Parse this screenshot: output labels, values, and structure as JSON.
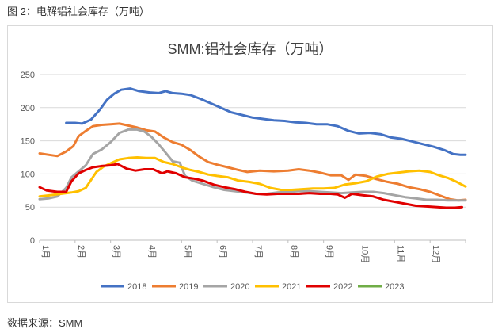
{
  "figure": {
    "caption": "图 2：电解铝社会库存（万吨）",
    "source": "数据来源：SMM"
  },
  "chart_data": {
    "type": "line",
    "title": "SMM:铝社会库存（万吨）",
    "xlabel": "",
    "ylabel": "",
    "ylim": [
      0,
      250
    ],
    "yticks": [
      0,
      50,
      100,
      150,
      200,
      250
    ],
    "x_domain": [
      1,
      13
    ],
    "xtick_labels": [
      "1月",
      "2月",
      "3月",
      "4月",
      "5月",
      "6月",
      "7月",
      "8月",
      "9月",
      "10月",
      "11月",
      "12月"
    ],
    "grid": "horizontal",
    "legend_position": "bottom",
    "series": [
      {
        "name": "2018",
        "color": "#4472c4",
        "points": [
          [
            1.75,
            177
          ],
          [
            2.0,
            177
          ],
          [
            2.2,
            176
          ],
          [
            2.45,
            182
          ],
          [
            2.7,
            197
          ],
          [
            2.9,
            212
          ],
          [
            3.1,
            221
          ],
          [
            3.3,
            227
          ],
          [
            3.55,
            229
          ],
          [
            3.8,
            225
          ],
          [
            4.1,
            223
          ],
          [
            4.35,
            222
          ],
          [
            4.55,
            225
          ],
          [
            4.75,
            222
          ],
          [
            5.0,
            221
          ],
          [
            5.25,
            219
          ],
          [
            5.5,
            214
          ],
          [
            5.8,
            207
          ],
          [
            6.1,
            200
          ],
          [
            6.4,
            193
          ],
          [
            6.7,
            189
          ],
          [
            7.0,
            185
          ],
          [
            7.3,
            183
          ],
          [
            7.6,
            181
          ],
          [
            7.9,
            180
          ],
          [
            8.2,
            178
          ],
          [
            8.5,
            177
          ],
          [
            8.8,
            175
          ],
          [
            9.1,
            175
          ],
          [
            9.4,
            172
          ],
          [
            9.7,
            165
          ],
          [
            10.0,
            161
          ],
          [
            10.3,
            162
          ],
          [
            10.6,
            160
          ],
          [
            10.9,
            155
          ],
          [
            11.2,
            153
          ],
          [
            11.5,
            149
          ],
          [
            11.8,
            145
          ],
          [
            12.1,
            141
          ],
          [
            12.4,
            136
          ],
          [
            12.65,
            130
          ],
          [
            12.85,
            129
          ],
          [
            13.0,
            129
          ]
        ]
      },
      {
        "name": "2019",
        "color": "#ed7d31",
        "points": [
          [
            1.0,
            131
          ],
          [
            1.25,
            129
          ],
          [
            1.5,
            127
          ],
          [
            1.75,
            134
          ],
          [
            1.95,
            142
          ],
          [
            2.1,
            157
          ],
          [
            2.3,
            165
          ],
          [
            2.5,
            172
          ],
          [
            2.75,
            174
          ],
          [
            3.0,
            175
          ],
          [
            3.25,
            176
          ],
          [
            3.5,
            173
          ],
          [
            3.75,
            170
          ],
          [
            4.0,
            166
          ],
          [
            4.25,
            164
          ],
          [
            4.5,
            155
          ],
          [
            4.75,
            148
          ],
          [
            5.0,
            144
          ],
          [
            5.25,
            136
          ],
          [
            5.5,
            126
          ],
          [
            5.75,
            118
          ],
          [
            6.0,
            114
          ],
          [
            6.3,
            110
          ],
          [
            6.6,
            106
          ],
          [
            6.85,
            103
          ],
          [
            7.2,
            105
          ],
          [
            7.6,
            104
          ],
          [
            8.0,
            105
          ],
          [
            8.3,
            107
          ],
          [
            8.6,
            105
          ],
          [
            8.9,
            102
          ],
          [
            9.2,
            98
          ],
          [
            9.5,
            98
          ],
          [
            9.7,
            91
          ],
          [
            9.9,
            99
          ],
          [
            10.2,
            97
          ],
          [
            10.5,
            92
          ],
          [
            10.8,
            88
          ],
          [
            11.1,
            85
          ],
          [
            11.4,
            80
          ],
          [
            11.7,
            77
          ],
          [
            12.0,
            73
          ],
          [
            12.3,
            67
          ],
          [
            12.55,
            62
          ],
          [
            12.8,
            60
          ],
          [
            13.0,
            61
          ]
        ]
      },
      {
        "name": "2020",
        "color": "#a5a5a5",
        "points": [
          [
            1.0,
            62
          ],
          [
            1.25,
            63
          ],
          [
            1.5,
            66
          ],
          [
            1.75,
            79
          ],
          [
            1.9,
            95
          ],
          [
            2.1,
            104
          ],
          [
            2.3,
            113
          ],
          [
            2.5,
            130
          ],
          [
            2.75,
            137
          ],
          [
            3.0,
            148
          ],
          [
            3.25,
            162
          ],
          [
            3.5,
            167
          ],
          [
            3.75,
            167
          ],
          [
            3.95,
            164
          ],
          [
            4.15,
            156
          ],
          [
            4.35,
            145
          ],
          [
            4.55,
            132
          ],
          [
            4.75,
            119
          ],
          [
            4.95,
            117
          ],
          [
            5.1,
            97
          ],
          [
            5.3,
            90
          ],
          [
            5.6,
            85
          ],
          [
            5.9,
            80
          ],
          [
            6.2,
            76
          ],
          [
            6.5,
            74
          ],
          [
            6.8,
            72
          ],
          [
            7.1,
            70
          ],
          [
            7.4,
            70
          ],
          [
            7.7,
            72
          ],
          [
            8.0,
            73
          ],
          [
            8.3,
            74
          ],
          [
            8.6,
            74
          ],
          [
            8.9,
            73
          ],
          [
            9.2,
            72
          ],
          [
            9.5,
            71
          ],
          [
            9.8,
            72
          ],
          [
            10.1,
            73
          ],
          [
            10.4,
            73
          ],
          [
            10.7,
            71
          ],
          [
            11.0,
            68
          ],
          [
            11.3,
            65
          ],
          [
            11.6,
            63
          ],
          [
            11.9,
            61
          ],
          [
            12.2,
            61
          ],
          [
            12.5,
            60
          ],
          [
            12.8,
            60
          ],
          [
            13.0,
            60
          ]
        ]
      },
      {
        "name": "2021",
        "color": "#ffc000",
        "points": [
          [
            1.0,
            66
          ],
          [
            1.3,
            68
          ],
          [
            1.6,
            70
          ],
          [
            1.9,
            72
          ],
          [
            2.1,
            74
          ],
          [
            2.3,
            79
          ],
          [
            2.45,
            91
          ],
          [
            2.6,
            103
          ],
          [
            2.8,
            111
          ],
          [
            3.0,
            116
          ],
          [
            3.25,
            122
          ],
          [
            3.5,
            124
          ],
          [
            3.75,
            125
          ],
          [
            4.0,
            124
          ],
          [
            4.25,
            124
          ],
          [
            4.5,
            118
          ],
          [
            4.75,
            115
          ],
          [
            5.0,
            110
          ],
          [
            5.25,
            106
          ],
          [
            5.5,
            103
          ],
          [
            5.75,
            99
          ],
          [
            6.0,
            97
          ],
          [
            6.3,
            95
          ],
          [
            6.6,
            90
          ],
          [
            6.9,
            88
          ],
          [
            7.2,
            85
          ],
          [
            7.5,
            79
          ],
          [
            7.8,
            76
          ],
          [
            8.1,
            76
          ],
          [
            8.4,
            77
          ],
          [
            8.7,
            78
          ],
          [
            9.0,
            78
          ],
          [
            9.3,
            79
          ],
          [
            9.6,
            84
          ],
          [
            9.9,
            86
          ],
          [
            10.2,
            89
          ],
          [
            10.5,
            96
          ],
          [
            10.8,
            100
          ],
          [
            11.1,
            102
          ],
          [
            11.4,
            104
          ],
          [
            11.7,
            105
          ],
          [
            12.0,
            103
          ],
          [
            12.25,
            98
          ],
          [
            12.5,
            94
          ],
          [
            12.75,
            88
          ],
          [
            13.0,
            81
          ]
        ]
      },
      {
        "name": "2022",
        "color": "#e00000",
        "points": [
          [
            1.0,
            80
          ],
          [
            1.2,
            75
          ],
          [
            1.5,
            73
          ],
          [
            1.75,
            73
          ],
          [
            1.9,
            89
          ],
          [
            2.1,
            101
          ],
          [
            2.3,
            106
          ],
          [
            2.5,
            110
          ],
          [
            2.75,
            112
          ],
          [
            3.0,
            113
          ],
          [
            3.2,
            115
          ],
          [
            3.45,
            108
          ],
          [
            3.7,
            105
          ],
          [
            3.95,
            107
          ],
          [
            4.2,
            107
          ],
          [
            4.45,
            101
          ],
          [
            4.6,
            104
          ],
          [
            4.85,
            101
          ],
          [
            5.1,
            95
          ],
          [
            5.35,
            93
          ],
          [
            5.6,
            90
          ],
          [
            5.9,
            84
          ],
          [
            6.2,
            80
          ],
          [
            6.5,
            77
          ],
          [
            6.8,
            73
          ],
          [
            7.1,
            70
          ],
          [
            7.4,
            69
          ],
          [
            7.7,
            70
          ],
          [
            8.0,
            70
          ],
          [
            8.3,
            70
          ],
          [
            8.6,
            71
          ],
          [
            8.9,
            70
          ],
          [
            9.2,
            70
          ],
          [
            9.4,
            69
          ],
          [
            9.6,
            64
          ],
          [
            9.8,
            70
          ],
          [
            10.1,
            68
          ],
          [
            10.4,
            66
          ],
          [
            10.7,
            61
          ],
          [
            11.0,
            58
          ],
          [
            11.3,
            55
          ],
          [
            11.6,
            52
          ],
          [
            11.9,
            51
          ],
          [
            12.2,
            50
          ],
          [
            12.45,
            49
          ],
          [
            12.7,
            49
          ],
          [
            12.9,
            50
          ]
        ]
      },
      {
        "name": "2023",
        "color": "#70ad47",
        "points": []
      }
    ]
  }
}
